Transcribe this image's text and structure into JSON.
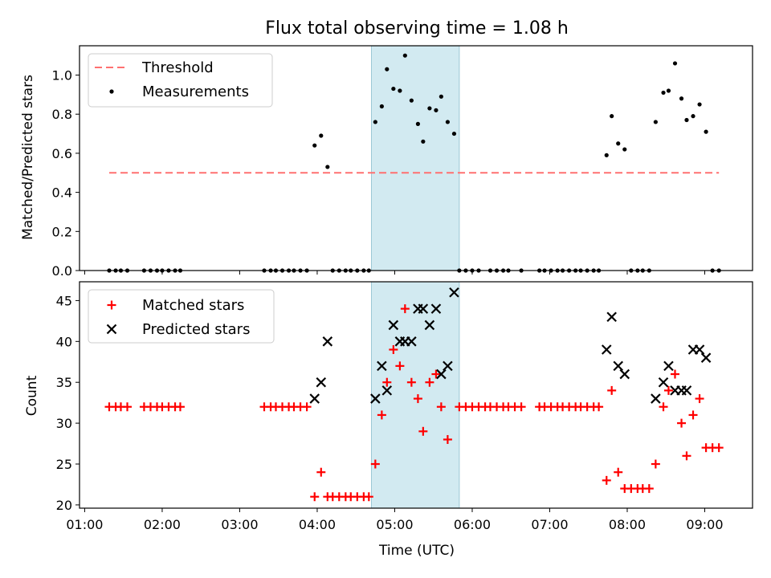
{
  "chart_data": {
    "title": "Flux total observing time = 1.08 h",
    "highlight": {
      "x_start": "04:42",
      "x_end": "05:50",
      "color": "#add8e6"
    },
    "xlabel": "Time (UTC)",
    "xlim": [
      "00:56",
      "09:37"
    ],
    "x_ticks": [
      "01:00",
      "02:00",
      "03:00",
      "04:00",
      "05:00",
      "06:00",
      "07:00",
      "08:00",
      "09:00"
    ],
    "top": {
      "type": "scatter",
      "ylabel": "Matched/Predicted stars",
      "ylim": [
        0,
        1.15
      ],
      "y_ticks": [
        "0.0",
        "0.2",
        "0.4",
        "0.6",
        "0.8",
        "1.0"
      ],
      "legend_position": "top-left",
      "threshold": {
        "name": "Threshold",
        "value": 0.5,
        "x_start": "01:19",
        "x_end": "09:11",
        "color": "#ff7070"
      },
      "series": [
        {
          "name": "Measurements",
          "color": "#000000",
          "points": [
            [
              "01:19",
              0
            ],
            [
              "01:24",
              0
            ],
            [
              "01:28",
              0
            ],
            [
              "01:33",
              0
            ],
            [
              "01:46",
              0
            ],
            [
              "01:51",
              0
            ],
            [
              "01:56",
              0
            ],
            [
              "02:00",
              0
            ],
            [
              "02:05",
              0
            ],
            [
              "02:10",
              0
            ],
            [
              "02:14",
              0
            ],
            [
              "03:19",
              0
            ],
            [
              "03:24",
              0
            ],
            [
              "03:28",
              0
            ],
            [
              "03:33",
              0
            ],
            [
              "03:38",
              0
            ],
            [
              "03:42",
              0
            ],
            [
              "03:47",
              0
            ],
            [
              "03:52",
              0
            ],
            [
              "03:58",
              0.64
            ],
            [
              "04:03",
              0.69
            ],
            [
              "04:08",
              0.53
            ],
            [
              "04:12",
              0
            ],
            [
              "04:17",
              0
            ],
            [
              "04:22",
              0
            ],
            [
              "04:26",
              0
            ],
            [
              "04:31",
              0
            ],
            [
              "04:36",
              0
            ],
            [
              "04:40",
              0
            ],
            [
              "04:45",
              0.76
            ],
            [
              "04:50",
              0.84
            ],
            [
              "04:54",
              1.03
            ],
            [
              "04:59",
              0.93
            ],
            [
              "05:04",
              0.92
            ],
            [
              "05:08",
              1.1
            ],
            [
              "05:13",
              0.87
            ],
            [
              "05:18",
              0.75
            ],
            [
              "05:22",
              0.66
            ],
            [
              "05:27",
              0.83
            ],
            [
              "05:32",
              0.82
            ],
            [
              "05:36",
              0.89
            ],
            [
              "05:41",
              0.76
            ],
            [
              "05:46",
              0.7
            ],
            [
              "05:50",
              0
            ],
            [
              "05:55",
              0
            ],
            [
              "06:00",
              0
            ],
            [
              "06:05",
              0
            ],
            [
              "06:14",
              0
            ],
            [
              "06:19",
              0
            ],
            [
              "06:24",
              0
            ],
            [
              "06:28",
              0
            ],
            [
              "06:38",
              0
            ],
            [
              "06:52",
              0
            ],
            [
              "06:56",
              0
            ],
            [
              "07:01",
              0
            ],
            [
              "07:06",
              0
            ],
            [
              "07:10",
              0
            ],
            [
              "07:15",
              0
            ],
            [
              "07:20",
              0
            ],
            [
              "07:24",
              0
            ],
            [
              "07:29",
              0
            ],
            [
              "07:34",
              0
            ],
            [
              "07:38",
              0
            ],
            [
              "07:44",
              0.59
            ],
            [
              "07:48",
              0.79
            ],
            [
              "07:53",
              0.65
            ],
            [
              "07:58",
              0.62
            ],
            [
              "08:03",
              0
            ],
            [
              "08:08",
              0
            ],
            [
              "08:12",
              0
            ],
            [
              "08:17",
              0
            ],
            [
              "08:22",
              0.76
            ],
            [
              "08:28",
              0.91
            ],
            [
              "08:32",
              0.92
            ],
            [
              "08:37",
              1.06
            ],
            [
              "08:42",
              0.88
            ],
            [
              "08:46",
              0.77
            ],
            [
              "08:51",
              0.79
            ],
            [
              "08:56",
              0.85
            ],
            [
              "09:01",
              0.71
            ],
            [
              "09:06",
              0
            ],
            [
              "09:11",
              0
            ]
          ]
        }
      ]
    },
    "bottom": {
      "type": "scatter",
      "ylabel": "Count",
      "ylim": [
        19.6,
        47.3
      ],
      "y_ticks": [
        "20",
        "25",
        "30",
        "35",
        "40",
        "45"
      ],
      "legend_position": "top-left",
      "series": [
        {
          "name": "Matched stars",
          "marker": "plus",
          "color": "#ff0000",
          "points": [
            [
              "01:19",
              32
            ],
            [
              "01:24",
              32
            ],
            [
              "01:28",
              32
            ],
            [
              "01:33",
              32
            ],
            [
              "01:46",
              32
            ],
            [
              "01:51",
              32
            ],
            [
              "01:56",
              32
            ],
            [
              "02:00",
              32
            ],
            [
              "02:05",
              32
            ],
            [
              "02:10",
              32
            ],
            [
              "02:14",
              32
            ],
            [
              "03:19",
              32
            ],
            [
              "03:24",
              32
            ],
            [
              "03:28",
              32
            ],
            [
              "03:33",
              32
            ],
            [
              "03:38",
              32
            ],
            [
              "03:42",
              32
            ],
            [
              "03:47",
              32
            ],
            [
              "03:52",
              32
            ],
            [
              "03:58",
              21
            ],
            [
              "04:03",
              24
            ],
            [
              "04:08",
              21
            ],
            [
              "04:12",
              21
            ],
            [
              "04:17",
              21
            ],
            [
              "04:22",
              21
            ],
            [
              "04:26",
              21
            ],
            [
              "04:31",
              21
            ],
            [
              "04:36",
              21
            ],
            [
              "04:40",
              21
            ],
            [
              "04:45",
              25
            ],
            [
              "04:50",
              31
            ],
            [
              "04:54",
              35
            ],
            [
              "04:59",
              39
            ],
            [
              "05:04",
              37
            ],
            [
              "05:08",
              44
            ],
            [
              "05:13",
              35
            ],
            [
              "05:18",
              33
            ],
            [
              "05:22",
              29
            ],
            [
              "05:27",
              35
            ],
            [
              "05:32",
              36
            ],
            [
              "05:36",
              32
            ],
            [
              "05:41",
              28
            ],
            [
              "05:50",
              32
            ],
            [
              "05:55",
              32
            ],
            [
              "06:00",
              32
            ],
            [
              "06:05",
              32
            ],
            [
              "06:10",
              32
            ],
            [
              "06:14",
              32
            ],
            [
              "06:19",
              32
            ],
            [
              "06:24",
              32
            ],
            [
              "06:28",
              32
            ],
            [
              "06:33",
              32
            ],
            [
              "06:38",
              32
            ],
            [
              "06:52",
              32
            ],
            [
              "06:56",
              32
            ],
            [
              "07:01",
              32
            ],
            [
              "07:06",
              32
            ],
            [
              "07:10",
              32
            ],
            [
              "07:15",
              32
            ],
            [
              "07:20",
              32
            ],
            [
              "07:24",
              32
            ],
            [
              "07:29",
              32
            ],
            [
              "07:34",
              32
            ],
            [
              "07:38",
              32
            ],
            [
              "07:44",
              23
            ],
            [
              "07:48",
              34
            ],
            [
              "07:53",
              24
            ],
            [
              "07:58",
              22
            ],
            [
              "08:03",
              22
            ],
            [
              "08:08",
              22
            ],
            [
              "08:12",
              22
            ],
            [
              "08:17",
              22
            ],
            [
              "08:22",
              25
            ],
            [
              "08:28",
              32
            ],
            [
              "08:32",
              34
            ],
            [
              "08:37",
              36
            ],
            [
              "08:42",
              30
            ],
            [
              "08:46",
              26
            ],
            [
              "08:51",
              31
            ],
            [
              "08:56",
              33
            ],
            [
              "09:01",
              27
            ],
            [
              "09:06",
              27
            ],
            [
              "09:11",
              27
            ]
          ]
        },
        {
          "name": "Predicted stars",
          "marker": "x",
          "color": "#000000",
          "points": [
            [
              "03:58",
              33
            ],
            [
              "04:03",
              35
            ],
            [
              "04:08",
              40
            ],
            [
              "04:45",
              33
            ],
            [
              "04:50",
              37
            ],
            [
              "04:54",
              34
            ],
            [
              "04:59",
              42
            ],
            [
              "05:04",
              40
            ],
            [
              "05:08",
              40
            ],
            [
              "05:13",
              40
            ],
            [
              "05:18",
              44
            ],
            [
              "05:22",
              44
            ],
            [
              "05:27",
              42
            ],
            [
              "05:32",
              44
            ],
            [
              "05:36",
              36
            ],
            [
              "05:41",
              37
            ],
            [
              "05:46",
              46
            ],
            [
              "07:44",
              39
            ],
            [
              "07:48",
              43
            ],
            [
              "07:53",
              37
            ],
            [
              "07:58",
              36
            ],
            [
              "08:22",
              33
            ],
            [
              "08:28",
              35
            ],
            [
              "08:32",
              37
            ],
            [
              "08:37",
              34
            ],
            [
              "08:42",
              34
            ],
            [
              "08:46",
              34
            ],
            [
              "08:51",
              39
            ],
            [
              "08:56",
              39
            ],
            [
              "09:01",
              38
            ]
          ]
        }
      ]
    }
  }
}
